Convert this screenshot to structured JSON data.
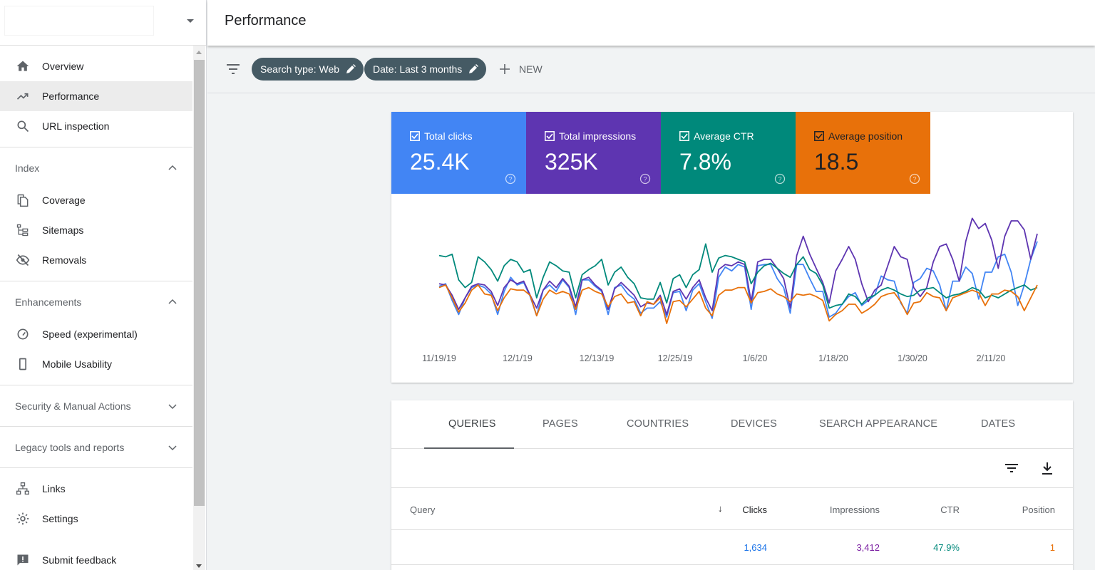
{
  "header": {
    "title": "Performance"
  },
  "sidebar": {
    "property_name": "",
    "items": [
      {
        "label": "Overview",
        "icon": "home-icon"
      },
      {
        "label": "Performance",
        "icon": "trending-up-icon",
        "active": true
      },
      {
        "label": "URL inspection",
        "icon": "search-icon"
      }
    ],
    "index": {
      "title": "Index",
      "items": [
        {
          "label": "Coverage",
          "icon": "coverage-icon"
        },
        {
          "label": "Sitemaps",
          "icon": "sitemap-icon"
        },
        {
          "label": "Removals",
          "icon": "eye-off-icon"
        }
      ]
    },
    "enhancements": {
      "title": "Enhancements",
      "items": [
        {
          "label": "Speed (experimental)",
          "icon": "speedometer-icon"
        },
        {
          "label": "Mobile Usability",
          "icon": "phone-icon"
        }
      ]
    },
    "security": {
      "title": "Security & Manual Actions"
    },
    "legacy": {
      "title": "Legacy tools and reports"
    },
    "bottom": [
      {
        "label": "Links",
        "icon": "links-icon"
      },
      {
        "label": "Settings",
        "icon": "gear-icon"
      },
      {
        "label": "Submit feedback",
        "icon": "feedback-icon"
      }
    ]
  },
  "filters": {
    "chips": [
      "Search type: Web",
      "Date: Last 3 months"
    ],
    "new_label": "NEW"
  },
  "metrics": [
    {
      "label": "Total clicks",
      "value": "25.4K",
      "color": "#4285f4",
      "checked": true
    },
    {
      "label": "Total impressions",
      "value": "325K",
      "color": "#5e35b1",
      "checked": true
    },
    {
      "label": "Average CTR",
      "value": "7.8%",
      "color": "#00897b",
      "checked": true
    },
    {
      "label": "Average position",
      "value": "18.5",
      "color": "#e8710a",
      "checked": true,
      "dark_text": true
    }
  ],
  "chart_data": {
    "type": "line",
    "x_tick_labels": [
      "11/19/19",
      "12/1/19",
      "12/13/19",
      "12/25/19",
      "1/6/20",
      "1/18/20",
      "1/30/20",
      "2/11/20"
    ],
    "series": [
      {
        "name": "Total clicks",
        "color": "#4285f4",
        "values": [
          0.39,
          0.41,
          0.28,
          0.17,
          0.3,
          0.38,
          0.4,
          0.38,
          0.33,
          0.17,
          0.35,
          0.46,
          0.4,
          0.42,
          0.31,
          0.16,
          0.36,
          0.4,
          0.35,
          0.44,
          0.38,
          0.17,
          0.44,
          0.44,
          0.39,
          0.35,
          0.17,
          0.38,
          0.4,
          0.33,
          0.29,
          0.18,
          0.22,
          0.22,
          0.27,
          0.15,
          0.34,
          0.35,
          0.2,
          0.36,
          0.41,
          0.27,
          0.14,
          0.46,
          0.54,
          0.51,
          0.56,
          0.54,
          0.21,
          0.55,
          0.56,
          0.56,
          0.45,
          0.38,
          0.18,
          0.56,
          0.56,
          0.45,
          0.35,
          0.35,
          0.15,
          0.18,
          0.25,
          0.31,
          0.34,
          0.24,
          0.28,
          0.32,
          0.47,
          0.44,
          0.43,
          0.26,
          0.18,
          0.42,
          0.45,
          0.53,
          0.51,
          0.4,
          0.2,
          0.43,
          0.43,
          0.54,
          0.49,
          0.29,
          0.5,
          0.5,
          0.62,
          0.64,
          0.5,
          0.24,
          0.4,
          0.6,
          0.74
        ]
      },
      {
        "name": "Total impressions",
        "color": "#5e35b1",
        "values": [
          0.41,
          0.4,
          0.32,
          0.21,
          0.3,
          0.39,
          0.41,
          0.4,
          0.35,
          0.24,
          0.38,
          0.44,
          0.41,
          0.43,
          0.32,
          0.22,
          0.36,
          0.43,
          0.38,
          0.45,
          0.39,
          0.23,
          0.44,
          0.46,
          0.4,
          0.36,
          0.21,
          0.37,
          0.42,
          0.37,
          0.32,
          0.23,
          0.26,
          0.25,
          0.32,
          0.17,
          0.35,
          0.37,
          0.29,
          0.38,
          0.44,
          0.3,
          0.2,
          0.52,
          0.56,
          0.55,
          0.58,
          0.56,
          0.27,
          0.58,
          0.6,
          0.6,
          0.53,
          0.45,
          0.22,
          0.63,
          0.78,
          0.64,
          0.53,
          0.42,
          0.26,
          0.51,
          0.6,
          0.7,
          0.6,
          0.41,
          0.27,
          0.36,
          0.4,
          0.55,
          0.7,
          0.62,
          0.6,
          0.38,
          0.31,
          0.38,
          0.58,
          0.7,
          0.72,
          0.6,
          0.43,
          0.74,
          0.92,
          0.84,
          0.88,
          0.75,
          0.53,
          0.78,
          0.9,
          0.9,
          0.83,
          0.6,
          0.8
        ]
      },
      {
        "name": "Average CTR",
        "color": "#00897b",
        "values": [
          0.63,
          0.62,
          0.64,
          0.44,
          0.38,
          0.42,
          0.62,
          0.58,
          0.52,
          0.43,
          0.55,
          0.6,
          0.58,
          0.5,
          0.52,
          0.3,
          0.46,
          0.58,
          0.55,
          0.51,
          0.5,
          0.3,
          0.48,
          0.52,
          0.55,
          0.6,
          0.4,
          0.5,
          0.54,
          0.46,
          0.41,
          0.3,
          0.29,
          0.29,
          0.42,
          0.26,
          0.45,
          0.48,
          0.38,
          0.48,
          0.52,
          0.72,
          0.5,
          0.61,
          0.63,
          0.62,
          0.6,
          0.58,
          0.41,
          0.5,
          0.55,
          0.57,
          0.53,
          0.49,
          0.46,
          0.56,
          0.62,
          0.52,
          0.49,
          0.4,
          0.22,
          0.24,
          0.25,
          0.33,
          0.31,
          0.25,
          0.3,
          0.32,
          0.36,
          0.38,
          0.36,
          0.33,
          0.31,
          0.32,
          0.36,
          0.37,
          0.38,
          0.34,
          0.3,
          0.32,
          0.33,
          0.35,
          0.38,
          0.36,
          0.3,
          0.32,
          0.3,
          0.33,
          0.36,
          0.38,
          0.4,
          0.36,
          0.38
        ]
      },
      {
        "name": "Average position",
        "color": "#e8710a",
        "values": [
          0.38,
          0.4,
          0.3,
          0.19,
          0.26,
          0.36,
          0.4,
          0.33,
          0.32,
          0.2,
          0.3,
          0.37,
          0.36,
          0.36,
          0.32,
          0.16,
          0.29,
          0.36,
          0.33,
          0.35,
          0.33,
          0.21,
          0.36,
          0.38,
          0.35,
          0.33,
          0.23,
          0.31,
          0.33,
          0.26,
          0.27,
          0.16,
          0.27,
          0.25,
          0.3,
          0.1,
          0.27,
          0.28,
          0.23,
          0.29,
          0.35,
          0.22,
          0.16,
          0.32,
          0.36,
          0.36,
          0.38,
          0.38,
          0.26,
          0.34,
          0.35,
          0.37,
          0.33,
          0.31,
          0.27,
          0.33,
          0.32,
          0.33,
          0.31,
          0.28,
          0.12,
          0.17,
          0.2,
          0.25,
          0.25,
          0.18,
          0.21,
          0.25,
          0.31,
          0.33,
          0.34,
          0.27,
          0.17,
          0.26,
          0.27,
          0.34,
          0.31,
          0.3,
          0.2,
          0.3,
          0.32,
          0.34,
          0.36,
          0.34,
          0.24,
          0.33,
          0.33,
          0.36,
          0.35,
          0.31,
          0.2,
          0.3,
          0.4
        ]
      }
    ]
  },
  "table": {
    "tabs": [
      "QUERIES",
      "PAGES",
      "COUNTRIES",
      "DEVICES",
      "SEARCH APPEARANCE",
      "DATES"
    ],
    "headers": {
      "query": "Query",
      "clicks": "Clicks",
      "impressions": "Impressions",
      "ctr": "CTR",
      "position": "Position"
    },
    "rows": [
      {
        "query": "",
        "clicks": "1,634",
        "impressions": "3,412",
        "ctr": "47.9%",
        "position": "1"
      }
    ]
  }
}
